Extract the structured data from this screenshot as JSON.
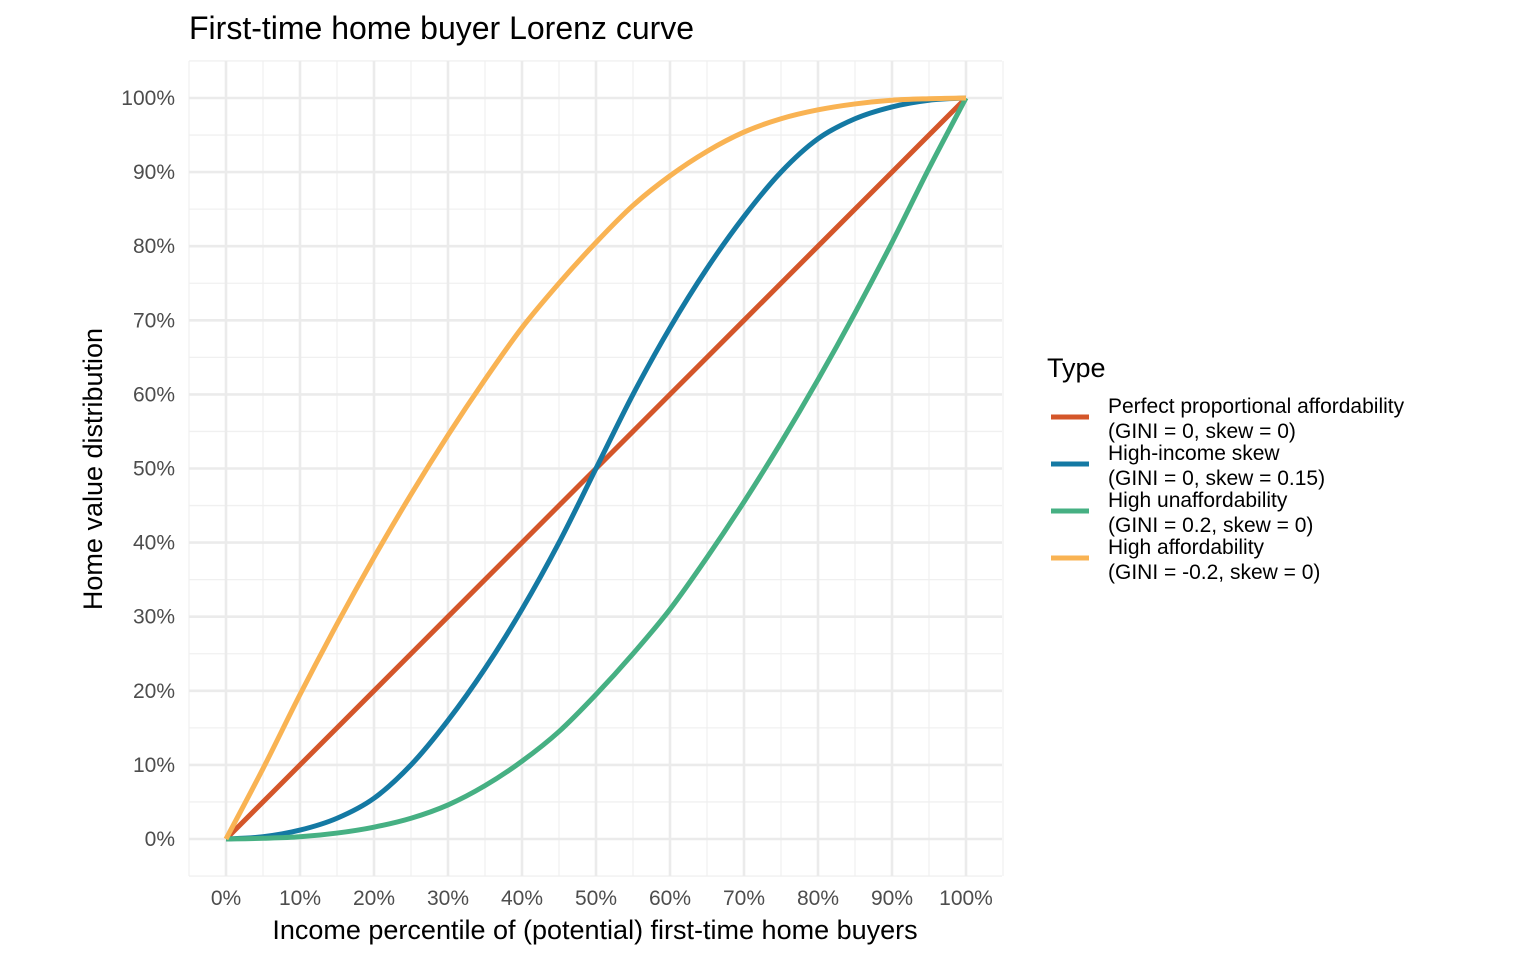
{
  "chart_data": {
    "type": "line",
    "title": "First-time home buyer Lorenz curve",
    "xlabel": "Income percentile of (potential) first-time home buyers",
    "ylabel": "Home value distribution",
    "xlim": [
      0,
      100
    ],
    "ylim": [
      0,
      100
    ],
    "x_ticks": [
      "0%",
      "10%",
      "20%",
      "30%",
      "40%",
      "50%",
      "60%",
      "70%",
      "80%",
      "90%",
      "100%"
    ],
    "y_ticks": [
      "0%",
      "10%",
      "20%",
      "30%",
      "40%",
      "50%",
      "60%",
      "70%",
      "80%",
      "90%",
      "100%"
    ],
    "grid": true,
    "legend": {
      "title": "Type",
      "position": "right"
    },
    "series": [
      {
        "name": "Perfect proportional affordability (GINI = 0, skew = 0)",
        "label_lines": [
          "Perfect proportional affordability",
          "(GINI = 0, skew = 0)"
        ],
        "color": "#D4562A",
        "x": [
          0,
          10,
          20,
          30,
          40,
          50,
          60,
          70,
          80,
          90,
          100
        ],
        "y": [
          0,
          10,
          20,
          30,
          40,
          50,
          60,
          70,
          80,
          90,
          100
        ]
      },
      {
        "name": "High-income skew (GINI = 0, skew = 0.15)",
        "label_lines": [
          "High-income skew",
          "(GINI = 0, skew = 0.15)"
        ],
        "color": "#1479A3",
        "x": [
          0,
          5,
          10,
          15,
          20,
          25,
          30,
          35,
          40,
          45,
          50,
          55,
          60,
          65,
          70,
          75,
          80,
          85,
          90,
          95,
          100
        ],
        "y": [
          0,
          0.3,
          1.2,
          2.8,
          5.5,
          10,
          16,
          23,
          31,
          40,
          50,
          60,
          69,
          77,
          84,
          90,
          94.5,
          97.2,
          98.8,
          99.7,
          100
        ]
      },
      {
        "name": "High unaffordability (GINI = 0.2, skew = 0)",
        "label_lines": [
          "High unaffordability",
          "(GINI = 0.2, skew = 0)"
        ],
        "color": "#46B083",
        "x": [
          0,
          5,
          10,
          15,
          20,
          25,
          30,
          35,
          40,
          45,
          50,
          55,
          60,
          65,
          70,
          75,
          80,
          85,
          90,
          95,
          100
        ],
        "y": [
          0,
          0.1,
          0.3,
          0.8,
          1.6,
          2.8,
          4.6,
          7.2,
          10.5,
          14.5,
          19.5,
          25,
          31,
          38,
          45.5,
          53.5,
          62,
          71,
          80.5,
          90.5,
          100
        ]
      },
      {
        "name": "High affordability (GINI = -0.2, skew = 0)",
        "label_lines": [
          "High affordability",
          "(GINI = -0.2, skew = 0)"
        ],
        "color": "#F9B353",
        "x": [
          0,
          5,
          10,
          15,
          20,
          25,
          30,
          35,
          40,
          45,
          50,
          55,
          60,
          65,
          70,
          75,
          80,
          85,
          90,
          95,
          100
        ],
        "y": [
          0,
          9.5,
          19.5,
          29,
          38,
          46.5,
          54.5,
          62,
          69,
          75,
          80.5,
          85.5,
          89.5,
          92.8,
          95.4,
          97.2,
          98.4,
          99.2,
          99.7,
          99.9,
          100
        ]
      }
    ]
  }
}
